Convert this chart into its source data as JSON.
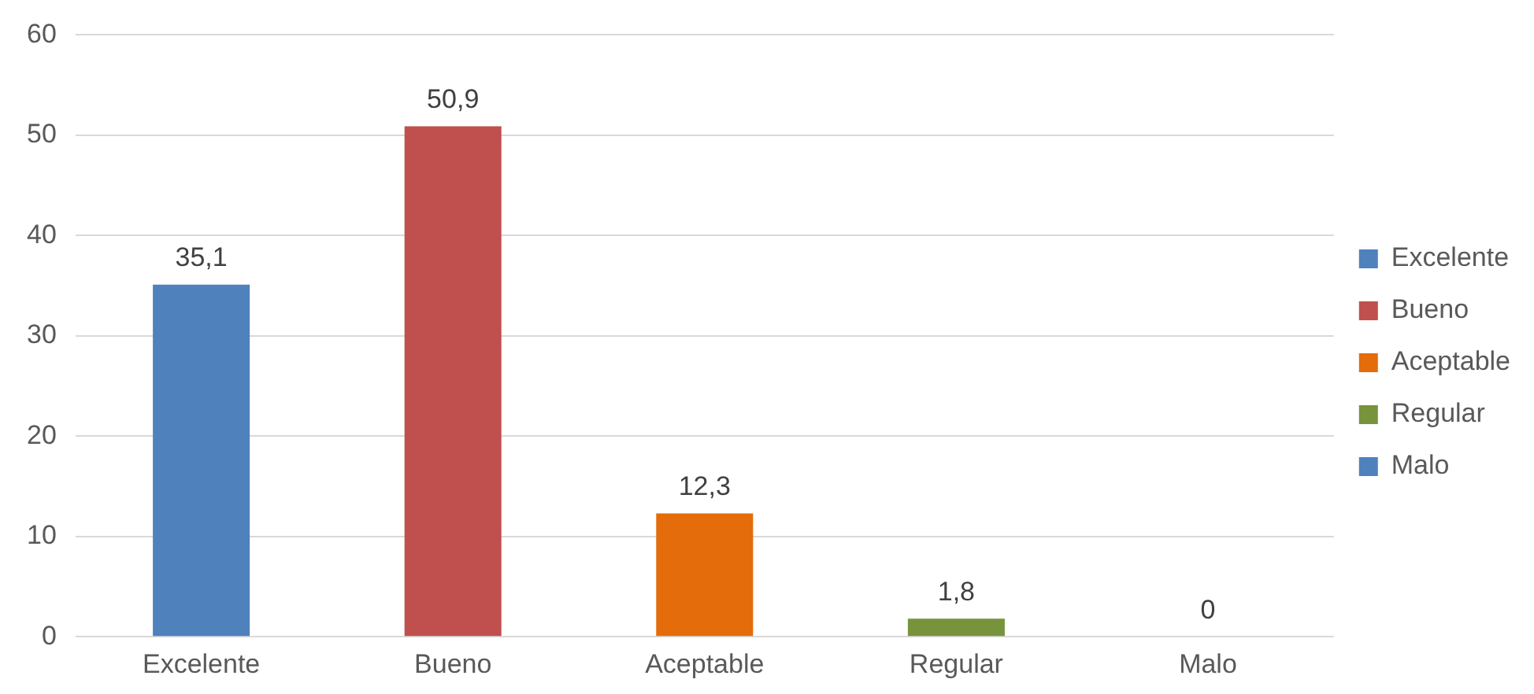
{
  "chart_data": {
    "type": "bar",
    "categories": [
      "Excelente",
      "Bueno",
      "Aceptable",
      "Regular",
      "Malo"
    ],
    "series": [
      {
        "name": "Excelente",
        "color": "#4f81bd",
        "values": [
          35.1,
          null,
          null,
          null,
          null
        ],
        "value_labels": [
          "35,1",
          null,
          null,
          null,
          null
        ]
      },
      {
        "name": "Bueno",
        "color": "#c0504d",
        "values": [
          null,
          50.9,
          null,
          null,
          null
        ],
        "value_labels": [
          null,
          "50,9",
          null,
          null,
          null
        ]
      },
      {
        "name": "Aceptable",
        "color": "#e46c0a",
        "values": [
          null,
          null,
          12.3,
          null,
          null
        ],
        "value_labels": [
          null,
          null,
          "12,3",
          null,
          null
        ]
      },
      {
        "name": "Regular",
        "color": "#77933c",
        "values": [
          null,
          null,
          null,
          1.8,
          null
        ],
        "value_labels": [
          null,
          null,
          null,
          "1,8",
          null
        ]
      },
      {
        "name": "Malo",
        "color": "#4f81bd",
        "values": [
          null,
          null,
          null,
          null,
          0
        ],
        "value_labels": [
          null,
          null,
          null,
          null,
          "0"
        ]
      }
    ],
    "ylim": [
      0,
      60
    ],
    "yticks": [
      0,
      10,
      20,
      30,
      40,
      50,
      60
    ],
    "grid": "y",
    "legend": "right"
  }
}
